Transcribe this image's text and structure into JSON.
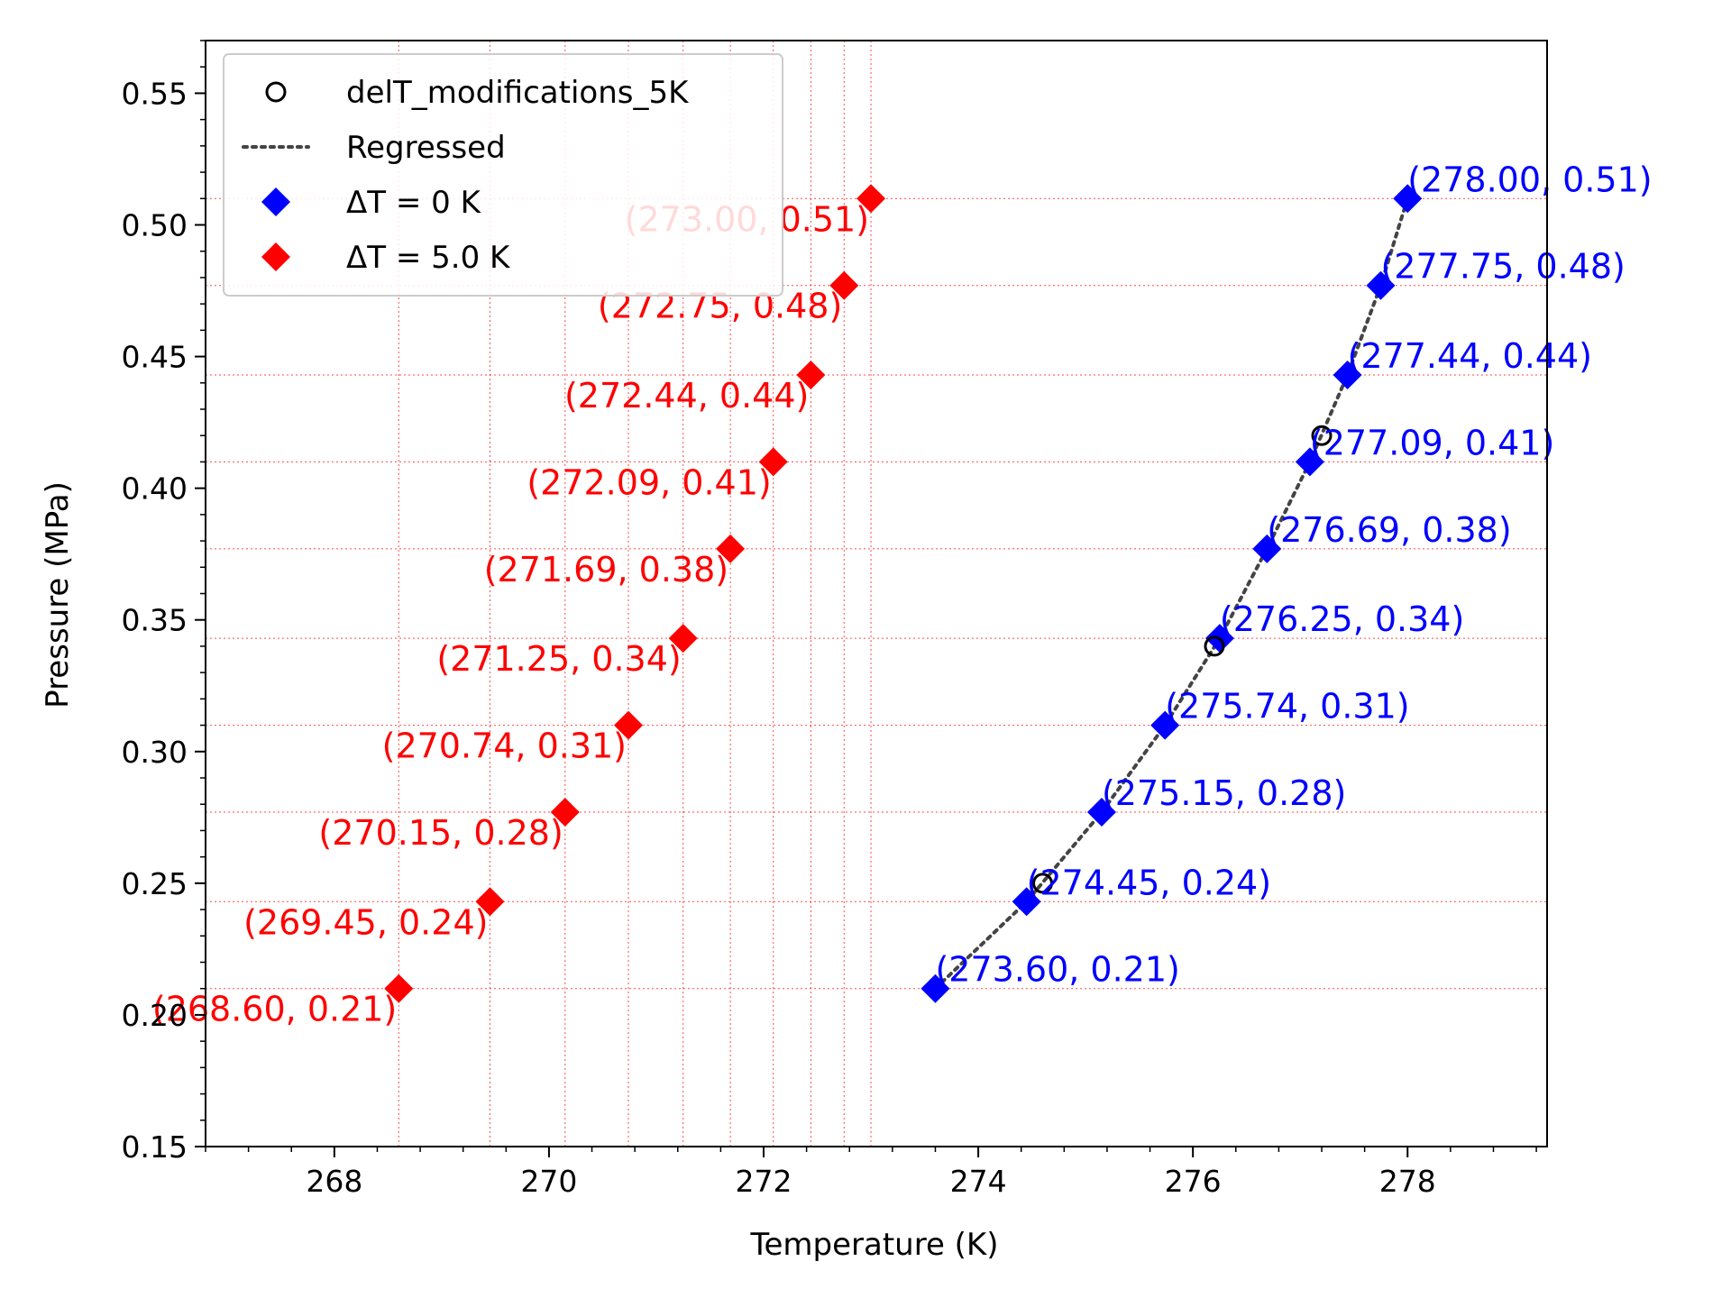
{
  "chart_data": {
    "type": "scatter",
    "title": "",
    "xlabel": "Temperature (K)",
    "ylabel": "Pressure (MPa)",
    "xlim": [
      266.8,
      279.3
    ],
    "ylim": [
      0.15,
      0.57
    ],
    "x_ticks": [
      268,
      270,
      272,
      274,
      276,
      278
    ],
    "x_tick_labels": [
      "268",
      "270",
      "272",
      "274",
      "276",
      "278"
    ],
    "y_ticks": [
      0.15,
      0.2,
      0.25,
      0.3,
      0.35,
      0.4,
      0.45,
      0.5,
      0.55
    ],
    "y_tick_labels": [
      "0.15",
      "0.20",
      "0.25",
      "0.30",
      "0.35",
      "0.40",
      "0.45",
      "0.50",
      "0.55"
    ],
    "grid": "dotted red guide lines through the ΔT = 5.0 K points",
    "legend_position": "upper-left",
    "legend": [
      {
        "label": "delT_modifications_5K",
        "marker": "open-circle",
        "color": "#000000"
      },
      {
        "label": "Regressed",
        "marker": "dotted-line",
        "color": "#444444"
      },
      {
        "label": "ΔT = 0 K",
        "marker": "diamond",
        "color": "#0000ff"
      },
      {
        "label": "ΔT = 5.0 K",
        "marker": "diamond",
        "color": "#ff0000"
      }
    ],
    "series": [
      {
        "name": "delT_modifications_5K",
        "marker": "open-circle",
        "color": "#000000",
        "points": [
          {
            "x": 274.6,
            "y": 0.25
          },
          {
            "x": 276.2,
            "y": 0.34
          },
          {
            "x": 277.2,
            "y": 0.42
          }
        ]
      },
      {
        "name": "Regressed",
        "marker": "dotted-line",
        "color": "#444444",
        "points": [
          {
            "x": 273.6,
            "y": 0.21
          },
          {
            "x": 274.45,
            "y": 0.243
          },
          {
            "x": 275.15,
            "y": 0.277
          },
          {
            "x": 275.74,
            "y": 0.31
          },
          {
            "x": 276.25,
            "y": 0.343
          },
          {
            "x": 276.69,
            "y": 0.377
          },
          {
            "x": 277.09,
            "y": 0.41
          },
          {
            "x": 277.44,
            "y": 0.443
          },
          {
            "x": 277.75,
            "y": 0.477
          },
          {
            "x": 278.0,
            "y": 0.51
          }
        ]
      },
      {
        "name": "ΔT = 0 K",
        "marker": "diamond",
        "color": "#0000ff",
        "points": [
          {
            "x": 273.6,
            "y": 0.21,
            "label": "(273.60, 0.21)"
          },
          {
            "x": 274.45,
            "y": 0.243,
            "label": "(274.45, 0.24)"
          },
          {
            "x": 275.15,
            "y": 0.277,
            "label": "(275.15, 0.28)"
          },
          {
            "x": 275.74,
            "y": 0.31,
            "label": "(275.74, 0.31)"
          },
          {
            "x": 276.25,
            "y": 0.343,
            "label": "(276.25, 0.34)"
          },
          {
            "x": 276.69,
            "y": 0.377,
            "label": "(276.69, 0.38)"
          },
          {
            "x": 277.09,
            "y": 0.41,
            "label": "(277.09, 0.41)"
          },
          {
            "x": 277.44,
            "y": 0.443,
            "label": "(277.44, 0.44)"
          },
          {
            "x": 277.75,
            "y": 0.477,
            "label": "(277.75, 0.48)"
          },
          {
            "x": 278.0,
            "y": 0.51,
            "label": "(278.00, 0.51)"
          }
        ]
      },
      {
        "name": "ΔT = 5.0 K",
        "marker": "diamond",
        "color": "#ff0000",
        "points": [
          {
            "x": 268.6,
            "y": 0.21,
            "label": "(268.60, 0.21)"
          },
          {
            "x": 269.45,
            "y": 0.243,
            "label": "(269.45, 0.24)"
          },
          {
            "x": 270.15,
            "y": 0.277,
            "label": "(270.15, 0.28)"
          },
          {
            "x": 270.74,
            "y": 0.31,
            "label": "(270.74, 0.31)"
          },
          {
            "x": 271.25,
            "y": 0.343,
            "label": "(271.25, 0.34)"
          },
          {
            "x": 271.69,
            "y": 0.377,
            "label": "(271.69, 0.38)"
          },
          {
            "x": 272.09,
            "y": 0.41,
            "label": "(272.09, 0.41)"
          },
          {
            "x": 272.44,
            "y": 0.443,
            "label": "(272.44, 0.44)"
          },
          {
            "x": 272.75,
            "y": 0.477,
            "label": "(272.75, 0.48)"
          },
          {
            "x": 273.0,
            "y": 0.51,
            "label": "(273.00, 0.51)"
          }
        ]
      }
    ]
  }
}
